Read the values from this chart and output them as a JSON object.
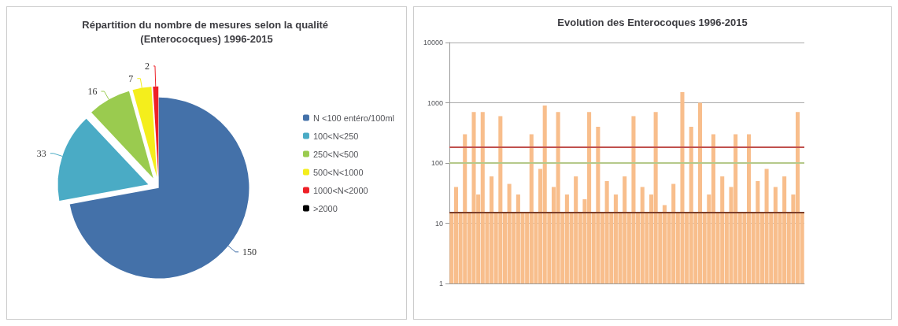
{
  "chart_data": [
    {
      "type": "pie",
      "title": "Répartition du nombre de mesures selon la qualité (Enterococques) 1996-2015",
      "categories": [
        "N <100 entéro/100ml",
        "100<N<250",
        "250<N<500",
        "500<N<1000",
        "1000<N<2000",
        ">2000"
      ],
      "values": [
        150,
        33,
        16,
        7,
        2,
        0
      ],
      "colors": [
        "#4471a9",
        "#4aabc5",
        "#9acb4f",
        "#f4ee1c",
        "#ee2027",
        "#000000"
      ],
      "data_labels": true,
      "legend": "right"
    },
    {
      "type": "bar",
      "title": "Evolution des Enterocoques 1996-2015",
      "categories": [
        null,
        null,
        null,
        null,
        null,
        null,
        null,
        null,
        null,
        null,
        null,
        null,
        null,
        null,
        null,
        null,
        null,
        null,
        null,
        null,
        null,
        null,
        null,
        null,
        null,
        null,
        null,
        null,
        null,
        null,
        null,
        null,
        null,
        null,
        null,
        null,
        null,
        null,
        null,
        null,
        null,
        null,
        null,
        null,
        null,
        null,
        null,
        null,
        null,
        null,
        null,
        null,
        null,
        null,
        null,
        null,
        null,
        null,
        null,
        null,
        null,
        null,
        null,
        null,
        null,
        null,
        null,
        null,
        null,
        null,
        null,
        null,
        null,
        null,
        null,
        null,
        null,
        null,
        null,
        null
      ],
      "values": [
        15,
        40,
        15,
        300,
        15,
        700,
        30,
        700,
        15,
        60,
        15,
        600,
        15,
        45,
        15,
        30,
        15,
        15,
        300,
        15,
        80,
        900,
        15,
        40,
        700,
        15,
        30,
        15,
        60,
        15,
        25,
        700,
        15,
        400,
        15,
        50,
        15,
        30,
        15,
        60,
        15,
        600,
        15,
        40,
        15,
        30,
        700,
        15,
        20,
        15,
        45,
        15,
        1500,
        15,
        400,
        15,
        1000,
        15,
        30,
        300,
        15,
        60,
        15,
        40,
        300,
        15,
        15,
        300,
        15,
        50,
        15,
        80,
        15,
        40,
        15,
        60,
        15,
        30,
        700,
        15
      ],
      "color": "#f8be8c",
      "ylim": [
        1,
        10000
      ],
      "yticks": [
        1,
        10,
        100,
        1000,
        10000
      ],
      "log": true,
      "grid": "y",
      "ref_lines": [
        {
          "axis": "y",
          "value": 185,
          "color": "#c0504d"
        },
        {
          "axis": "y",
          "value": 100,
          "color": "#b5c98a"
        },
        {
          "axis": "y",
          "value": 15,
          "color": "#7b3f2a"
        }
      ]
    }
  ]
}
